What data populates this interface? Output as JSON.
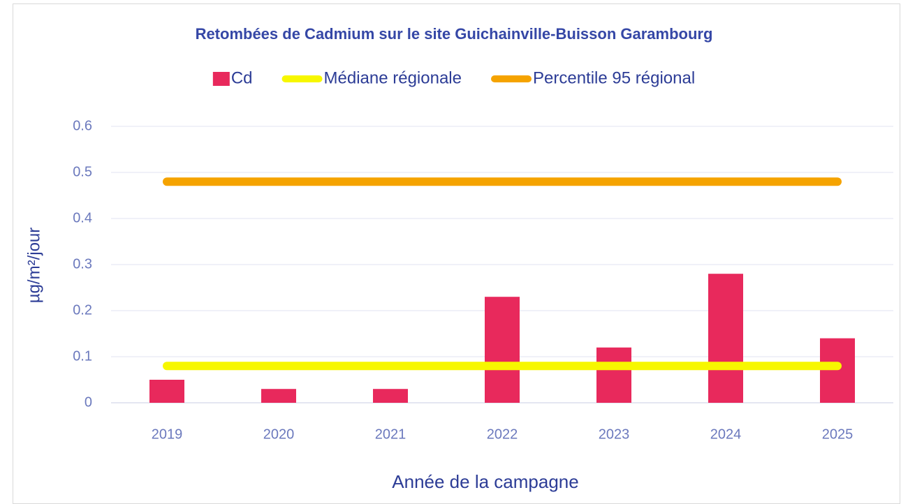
{
  "chart_data": {
    "type": "bar",
    "title": "Retombées de Cadmium sur le site Guichainville-Buisson Garambourg",
    "x_label": "Année de la campagne",
    "y_label": "µg/m²/jour",
    "categories": [
      "2019",
      "2020",
      "2021",
      "2022",
      "2023",
      "2024",
      "2025"
    ],
    "series": [
      {
        "name": "Cd",
        "type": "bar",
        "color": "#e8295c",
        "values": [
          0.05,
          0.03,
          0.03,
          0.23,
          0.12,
          0.28,
          0.14
        ]
      },
      {
        "name": "Médiane régionale",
        "type": "line",
        "color": "#f7f700",
        "values": [
          0.08,
          0.08,
          0.08,
          0.08,
          0.08,
          0.08,
          0.08
        ]
      },
      {
        "name": "Percentile 95 régional",
        "type": "line",
        "color": "#f5a300",
        "values": [
          0.48,
          0.48,
          0.48,
          0.48,
          0.48,
          0.48,
          0.48
        ]
      }
    ],
    "ylim": [
      0,
      0.6
    ],
    "yticks": [
      0,
      0.1,
      0.2,
      0.3,
      0.4,
      0.5,
      0.6
    ],
    "grid": true,
    "legend": "top"
  }
}
